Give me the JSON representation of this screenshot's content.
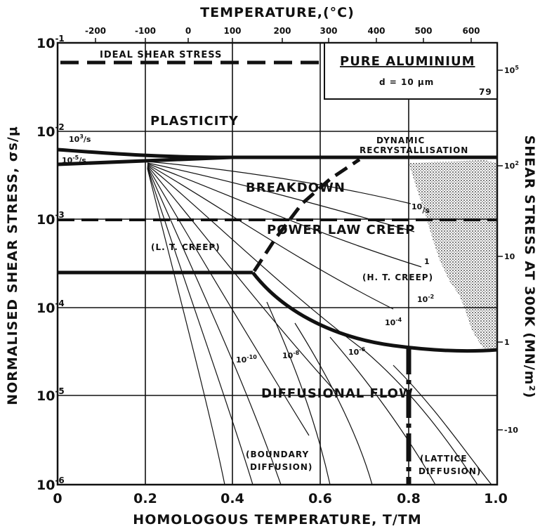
{
  "title": "TEMPERATURE,(°C)",
  "xlabel": "HOMOLOGOUS TEMPERATURE, T/TM",
  "ylabel": "NORMALISED SHEAR STRESS, σs/μ",
  "ylabel_right": "SHEAR STRESS AT 300K (MN/m²)",
  "x_ticks": [
    "0",
    "0.2",
    "0.4",
    "0.6",
    "0.8",
    "1.0"
  ],
  "y_ticks": [
    {
      "base": "10",
      "exp": "-1"
    },
    {
      "base": "10",
      "exp": "-2"
    },
    {
      "base": "10",
      "exp": "-3"
    },
    {
      "base": "10",
      "exp": "-4"
    },
    {
      "base": "10",
      "exp": "-5"
    },
    {
      "base": "10",
      "exp": "-6"
    }
  ],
  "top_ticks": [
    "-200",
    "-100",
    "0",
    "100",
    "200",
    "300",
    "400",
    "500",
    "600"
  ],
  "right_ticks": [
    {
      "base": "10",
      "exp": "5"
    },
    {
      "base": "10",
      "exp": "2"
    },
    {
      "base": "10",
      "exp": ""
    },
    {
      "base": "1",
      "exp": ""
    },
    {
      "base": "-10",
      "exp": ""
    }
  ],
  "legend_box": {
    "material": "PURE ALUMINIUM",
    "grain_size": "d = 10 μm",
    "ref": "79"
  },
  "fields": {
    "ideal_shear_stress": "IDEAL SHEAR STRESS",
    "plasticity": "PLASTICITY",
    "dynamic_1": "DYNAMIC",
    "dynamic_2": "RECRYSTALLISATION",
    "breakdown": "BREAKDOWN",
    "power_law_creep": "POWER LAW CREEP",
    "lt_creep": "(L. T. CREEP)",
    "ht_creep": "(H. T. CREEP)",
    "diffusional_flow": "DIFFUSIONAL FLOW",
    "boundary_1": "(BOUNDARY",
    "boundary_2": "DIFFUSION)",
    "lattice_1": "(LATTICE",
    "lattice_2": "DIFFUSION)"
  },
  "strain_rates": [
    {
      "base": "10",
      "exp": "3",
      "unit": "/s"
    },
    {
      "base": "10",
      "exp": "-5",
      "unit": "/s"
    },
    {
      "base": "10",
      "exp": "",
      "unit": "/s"
    },
    {
      "base": "1",
      "exp": "",
      "unit": ""
    },
    {
      "base": "10",
      "exp": "-2",
      "unit": ""
    },
    {
      "base": "10",
      "exp": "-4",
      "unit": ""
    },
    {
      "base": "10",
      "exp": "-6",
      "unit": ""
    },
    {
      "base": "10",
      "exp": "-8",
      "unit": ""
    },
    {
      "base": "10",
      "exp": "-10",
      "unit": ""
    }
  ]
}
